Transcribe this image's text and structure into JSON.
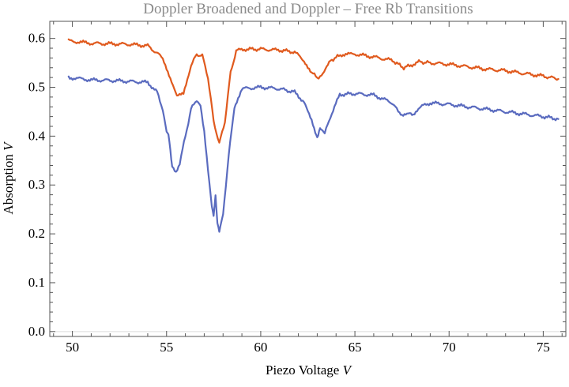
{
  "chart_data": {
    "type": "line",
    "title": "Doppler Broadened and Doppler – Free Rb Transitions",
    "xlabel": "Piezo Voltage",
    "xlabel_unit": "V",
    "ylabel": "Absorption",
    "ylabel_unit": "V",
    "xlim": [
      48.8,
      76.2
    ],
    "ylim": [
      -0.01,
      0.635
    ],
    "x_ticks": [
      50,
      55,
      60,
      65,
      70,
      75
    ],
    "x_tick_labels": [
      "50",
      "55",
      "60",
      "65",
      "70",
      "75"
    ],
    "y_ticks": [
      0.0,
      0.1,
      0.2,
      0.3,
      0.4,
      0.5,
      0.6
    ],
    "y_tick_labels": [
      "0.0",
      "0.1",
      "0.2",
      "0.3",
      "0.4",
      "0.5",
      "0.6"
    ],
    "grid": false,
    "series": [
      {
        "color": "#e05a1e",
        "x": [
          49.8,
          51,
          52,
          53,
          54,
          54.8,
          55.2,
          55.55,
          55.9,
          56.3,
          56.6,
          56.9,
          57.2,
          57.5,
          57.8,
          58.1,
          58.4,
          58.7,
          59.2,
          60,
          61,
          61.8,
          62.3,
          62.7,
          63.0,
          63.3,
          63.7,
          64.3,
          65,
          66,
          67,
          67.3,
          67.6,
          67.9,
          68.4,
          69,
          70,
          71,
          72,
          73,
          74,
          75,
          75.8
        ],
        "y": [
          0.595,
          0.59,
          0.589,
          0.588,
          0.585,
          0.56,
          0.52,
          0.48,
          0.49,
          0.545,
          0.567,
          0.565,
          0.52,
          0.43,
          0.385,
          0.43,
          0.53,
          0.575,
          0.578,
          0.578,
          0.576,
          0.572,
          0.555,
          0.53,
          0.52,
          0.525,
          0.555,
          0.567,
          0.568,
          0.562,
          0.555,
          0.547,
          0.54,
          0.544,
          0.552,
          0.55,
          0.547,
          0.542,
          0.537,
          0.534,
          0.528,
          0.523,
          0.517
        ]
      },
      {
        "color": "#5a6bbf",
        "x": [
          49.8,
          51,
          52,
          53,
          54,
          54.5,
          54.8,
          55.0,
          55.1,
          55.2,
          55.3,
          55.5,
          55.7,
          56.0,
          56.3,
          56.6,
          56.8,
          57.0,
          57.2,
          57.4,
          57.5,
          57.6,
          57.7,
          57.8,
          58.0,
          58.3,
          58.6,
          59.0,
          60,
          61,
          61.8,
          62.3,
          62.7,
          62.9,
          63.0,
          63.1,
          63.2,
          63.4,
          63.7,
          64.2,
          65,
          66,
          67,
          67.3,
          67.5,
          67.7,
          67.9,
          68.1,
          68.5,
          69,
          70,
          71,
          72,
          73,
          74,
          75,
          75.8
        ],
        "y": [
          0.52,
          0.515,
          0.514,
          0.512,
          0.51,
          0.49,
          0.455,
          0.41,
          0.405,
          0.37,
          0.34,
          0.328,
          0.345,
          0.4,
          0.455,
          0.475,
          0.465,
          0.41,
          0.33,
          0.255,
          0.24,
          0.275,
          0.225,
          0.203,
          0.24,
          0.36,
          0.46,
          0.497,
          0.5,
          0.497,
          0.49,
          0.47,
          0.43,
          0.405,
          0.398,
          0.41,
          0.415,
          0.405,
          0.44,
          0.485,
          0.487,
          0.484,
          0.468,
          0.45,
          0.443,
          0.447,
          0.45,
          0.445,
          0.46,
          0.468,
          0.465,
          0.46,
          0.455,
          0.45,
          0.445,
          0.44,
          0.435
        ]
      }
    ]
  }
}
